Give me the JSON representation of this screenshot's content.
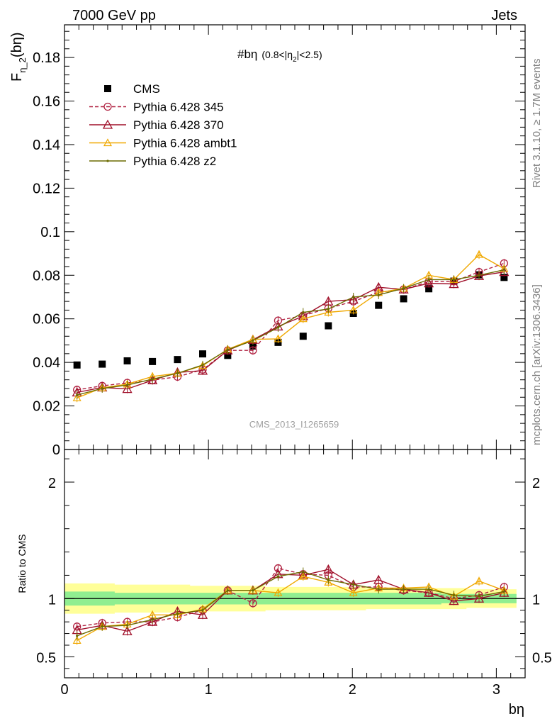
{
  "header": {
    "left": "7000 GeV pp",
    "right": "Jets"
  },
  "side_labels": {
    "rivet": "Rivet 3.1.10, ≥ 1.7M events",
    "mcplots": "mcplots.cern.ch [arXiv:1306.3436]"
  },
  "watermark": "CMS_2013_I1265659",
  "colors": {
    "cms": "#000000",
    "p345": "#b02040",
    "p370": "#a0102a",
    "ambt1": "#f0a800",
    "z2": "#6b6b00",
    "band_inner": "#90ee90",
    "band_outer": "#ffff99"
  },
  "chart_data": [
    {
      "type": "line",
      "title": "#bη",
      "title_suffix": "(0.8<|η",
      "title_sub": "2",
      "title_end": "|<2.5)",
      "ylabel_main": "F",
      "ylabel_sub": "η_2",
      "ylabel_end": "(bη)",
      "xlim": [
        0,
        3.2
      ],
      "ylim": [
        0,
        0.195
      ],
      "yticks": [
        0,
        0.02,
        0.04,
        0.06,
        0.08,
        0.1,
        0.12,
        0.14,
        0.16,
        0.18
      ],
      "ytick_labels": [
        "0",
        "0.02",
        "0.04",
        "0.06",
        "0.08",
        "0.1",
        "0.12",
        "0.14",
        "0.16",
        "0.18"
      ],
      "x": [
        0.087,
        0.262,
        0.436,
        0.611,
        0.785,
        0.96,
        1.134,
        1.309,
        1.484,
        1.658,
        1.833,
        2.007,
        2.182,
        2.356,
        2.531,
        2.705,
        2.88,
        3.054
      ],
      "series": [
        {
          "name": "CMS",
          "values": [
            0.0388,
            0.0392,
            0.0407,
            0.0404,
            0.0413,
            0.0439,
            0.0432,
            0.0475,
            0.0492,
            0.052,
            0.0568,
            0.0625,
            0.0662,
            0.0692,
            0.0738,
            0.0773,
            0.0802,
            0.079
          ]
        },
        {
          "name": "Pythia 6.428 345",
          "values": [
            0.0274,
            0.0292,
            0.0306,
            0.0318,
            0.0334,
            0.0367,
            0.0455,
            0.0455,
            0.0592,
            0.0615,
            0.0648,
            0.068,
            0.0722,
            0.0735,
            0.0771,
            0.0772,
            0.0815,
            0.0855
          ]
        },
        {
          "name": "Pythia 6.428 370",
          "values": [
            0.0262,
            0.0285,
            0.0278,
            0.0318,
            0.0354,
            0.0362,
            0.0455,
            0.0504,
            0.0565,
            0.0612,
            0.068,
            0.0688,
            0.0745,
            0.0735,
            0.0763,
            0.076,
            0.0797,
            0.0815
          ]
        },
        {
          "name": "Pythia 6.428 ambt1",
          "values": [
            0.0237,
            0.0283,
            0.03,
            0.0335,
            0.035,
            0.0385,
            0.046,
            0.0506,
            0.0508,
            0.06,
            0.063,
            0.064,
            0.072,
            0.074,
            0.08,
            0.078,
            0.0895,
            0.083
          ]
        },
        {
          "name": "Pythia 6.428 z2",
          "values": [
            0.025,
            0.028,
            0.0296,
            0.0323,
            0.035,
            0.0388,
            0.0458,
            0.05,
            0.056,
            0.063,
            0.0645,
            0.07,
            0.071,
            0.074,
            0.078,
            0.078,
            0.08,
            0.0825
          ]
        }
      ],
      "legend_position": "top-left"
    },
    {
      "type": "line",
      "ylabel": "Ratio to CMS",
      "xlabel": "bη",
      "xlim": [
        0,
        3.2
      ],
      "ylim": [
        0.32,
        2.28
      ],
      "yticks": [
        0.5,
        1,
        2
      ],
      "ytick_labels": [
        "0.5",
        "1",
        "2"
      ],
      "xticks": [
        0,
        1,
        2,
        3
      ],
      "xtick_labels": [
        "0",
        "1",
        "2",
        "3"
      ],
      "x": [
        0.087,
        0.262,
        0.436,
        0.611,
        0.785,
        0.96,
        1.134,
        1.309,
        1.484,
        1.658,
        1.833,
        2.007,
        2.182,
        2.356,
        2.531,
        2.705,
        2.88,
        3.054
      ],
      "band_inner": [
        0.06,
        0.06,
        0.05,
        0.05,
        0.05,
        0.05,
        0.05,
        0.05,
        0.05,
        0.05,
        0.05,
        0.05,
        0.05,
        0.05,
        0.05,
        0.04,
        0.04,
        0.04
      ],
      "band_outer": [
        0.13,
        0.13,
        0.12,
        0.12,
        0.12,
        0.11,
        0.11,
        0.11,
        0.1,
        0.1,
        0.1,
        0.1,
        0.09,
        0.09,
        0.09,
        0.09,
        0.08,
        0.08
      ],
      "series": [
        {
          "name": "Pythia 6.428 345",
          "values": [
            0.76,
            0.79,
            0.8,
            0.8,
            0.84,
            0.9,
            1.07,
            0.96,
            1.26,
            1.21,
            1.2,
            1.1,
            1.1,
            1.07,
            1.05,
            1.0,
            1.03,
            1.1
          ]
        },
        {
          "name": "Pythia 6.428 370",
          "values": [
            0.73,
            0.77,
            0.72,
            0.8,
            0.89,
            0.86,
            1.07,
            1.07,
            1.21,
            1.2,
            1.25,
            1.12,
            1.16,
            1.08,
            1.05,
            0.98,
            1.0,
            1.05
          ]
        },
        {
          "name": "Pythia 6.428 ambt1",
          "values": [
            0.64,
            0.76,
            0.78,
            0.86,
            0.86,
            0.91,
            1.07,
            1.07,
            1.05,
            1.19,
            1.14,
            1.05,
            1.09,
            1.09,
            1.1,
            1.02,
            1.15,
            1.07
          ]
        },
        {
          "name": "Pythia 6.428 z2",
          "values": [
            0.68,
            0.76,
            0.77,
            0.82,
            0.87,
            0.9,
            1.07,
            1.07,
            1.19,
            1.23,
            1.16,
            1.12,
            1.08,
            1.08,
            1.08,
            1.03,
            1.02,
            1.06
          ]
        }
      ]
    }
  ]
}
